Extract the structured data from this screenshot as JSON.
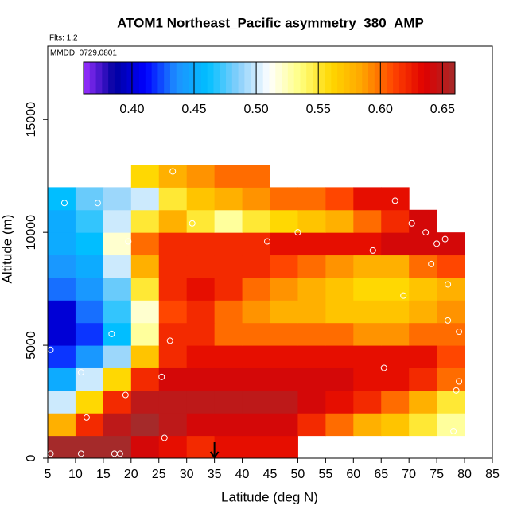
{
  "chart_data": {
    "type": "heatmap",
    "title": "ATOM1 Northeast_Pacific asymmetry_380_AMP",
    "subtitle": "Flts: 1,2",
    "annotation": "MMDD: 0729,0801",
    "xlabel": "Latitude (deg N)",
    "ylabel": "Altitude (m)",
    "xlim": [
      5,
      85
    ],
    "ylim": [
      0,
      18250
    ],
    "xticks": [
      5,
      10,
      15,
      20,
      25,
      30,
      35,
      40,
      45,
      50,
      55,
      60,
      65,
      70,
      75,
      80,
      85
    ],
    "yticks": [
      0,
      5000,
      10000,
      15000
    ],
    "xbins": [
      5,
      10,
      15,
      20,
      25,
      30,
      35,
      40,
      45,
      50,
      55,
      60,
      65,
      70,
      75,
      80
    ],
    "ybins": [
      0,
      1000,
      2000,
      3000,
      4000,
      5000,
      6000,
      7000,
      8000,
      9000,
      10000,
      11000,
      12000,
      13000
    ],
    "z": [
      [
        0.66,
        0.66,
        0.66,
        0.64,
        0.63,
        0.62,
        0.63,
        0.63,
        0.63,
        null,
        null,
        null,
        null,
        null,
        null
      ],
      [
        0.58,
        0.62,
        0.65,
        0.66,
        0.65,
        0.64,
        0.64,
        0.64,
        0.64,
        0.62,
        0.6,
        0.58,
        0.57,
        0.55,
        0.53
      ],
      [
        0.5,
        0.56,
        0.62,
        0.65,
        0.65,
        0.65,
        0.65,
        0.65,
        0.65,
        0.64,
        0.63,
        0.62,
        0.6,
        0.58,
        0.55
      ],
      [
        0.45,
        0.5,
        0.56,
        0.62,
        0.64,
        0.64,
        0.64,
        0.64,
        0.64,
        0.64,
        0.64,
        0.63,
        0.63,
        0.62,
        0.6
      ],
      [
        0.42,
        0.44,
        0.49,
        0.57,
        0.62,
        0.63,
        0.63,
        0.63,
        0.63,
        0.63,
        0.63,
        0.63,
        0.63,
        0.63,
        0.61
      ],
      [
        0.4,
        0.42,
        0.46,
        0.53,
        0.62,
        0.62,
        0.6,
        0.6,
        0.6,
        0.6,
        0.6,
        0.59,
        0.59,
        0.6,
        0.6
      ],
      [
        0.4,
        0.43,
        0.47,
        0.52,
        0.61,
        0.62,
        0.6,
        0.59,
        0.58,
        0.58,
        0.57,
        0.57,
        0.57,
        0.58,
        0.59
      ],
      [
        0.43,
        0.44,
        0.48,
        0.55,
        0.62,
        0.63,
        0.62,
        0.6,
        0.59,
        0.58,
        0.57,
        0.56,
        0.56,
        0.57,
        0.58
      ],
      [
        0.44,
        0.45,
        0.5,
        0.58,
        0.62,
        0.62,
        0.62,
        0.62,
        0.61,
        0.6,
        0.59,
        0.58,
        0.58,
        0.6,
        0.61
      ],
      [
        0.45,
        0.46,
        0.52,
        0.6,
        0.62,
        0.62,
        0.62,
        0.62,
        0.63,
        0.63,
        0.63,
        0.63,
        0.64,
        0.64,
        0.64
      ],
      [
        0.45,
        0.47,
        0.5,
        0.55,
        0.58,
        0.55,
        0.53,
        0.55,
        0.56,
        0.57,
        0.58,
        0.6,
        0.62,
        0.64,
        null
      ],
      [
        0.46,
        0.48,
        0.49,
        0.5,
        0.55,
        0.57,
        0.58,
        0.59,
        0.6,
        0.6,
        0.61,
        0.63,
        0.63,
        null,
        null
      ],
      [
        null,
        null,
        null,
        0.56,
        0.58,
        0.59,
        0.6,
        0.6,
        null,
        null,
        null,
        null,
        null,
        null,
        null
      ]
    ],
    "clim": [
      0.361,
      0.66
    ],
    "cticks": [
      {
        "value": 0.4,
        "label": "0.40"
      },
      {
        "value": 0.45,
        "label": "0.45"
      },
      {
        "value": 0.5,
        "label": "0.50"
      },
      {
        "value": 0.55,
        "label": "0.55"
      },
      {
        "value": 0.6,
        "label": "0.60"
      },
      {
        "value": 0.65,
        "label": "0.65"
      }
    ],
    "colormap": [
      "#9b30ff",
      "#0000a0",
      "#0000ff",
      "#1e90ff",
      "#00bfff",
      "#87cefa",
      "#ffffff",
      "#ffff80",
      "#ffd700",
      "#ffa500",
      "#ff4500",
      "#e00000",
      "#a52a2a"
    ],
    "points_x": [
      5.5,
      11,
      17,
      18,
      12,
      26,
      19,
      25.5,
      27,
      16.5,
      5.5,
      11,
      19.5,
      31,
      44.5,
      50,
      27.5,
      8,
      14,
      63.5,
      67.5,
      70.5,
      73,
      75,
      76.5,
      74,
      77,
      69,
      77,
      79,
      65.5,
      79,
      78.5,
      78
    ],
    "points_y": [
      200,
      200,
      200,
      200,
      1800,
      900,
      2800,
      3600,
      5200,
      5500,
      4800,
      3800,
      9600,
      10400,
      9600,
      10000,
      12700,
      11300,
      11300,
      9200,
      11400,
      10400,
      10000,
      9500,
      9700,
      8600,
      7700,
      7200,
      6100,
      5600,
      4000,
      3400,
      3000,
      1200
    ],
    "marker_x": 35
  }
}
